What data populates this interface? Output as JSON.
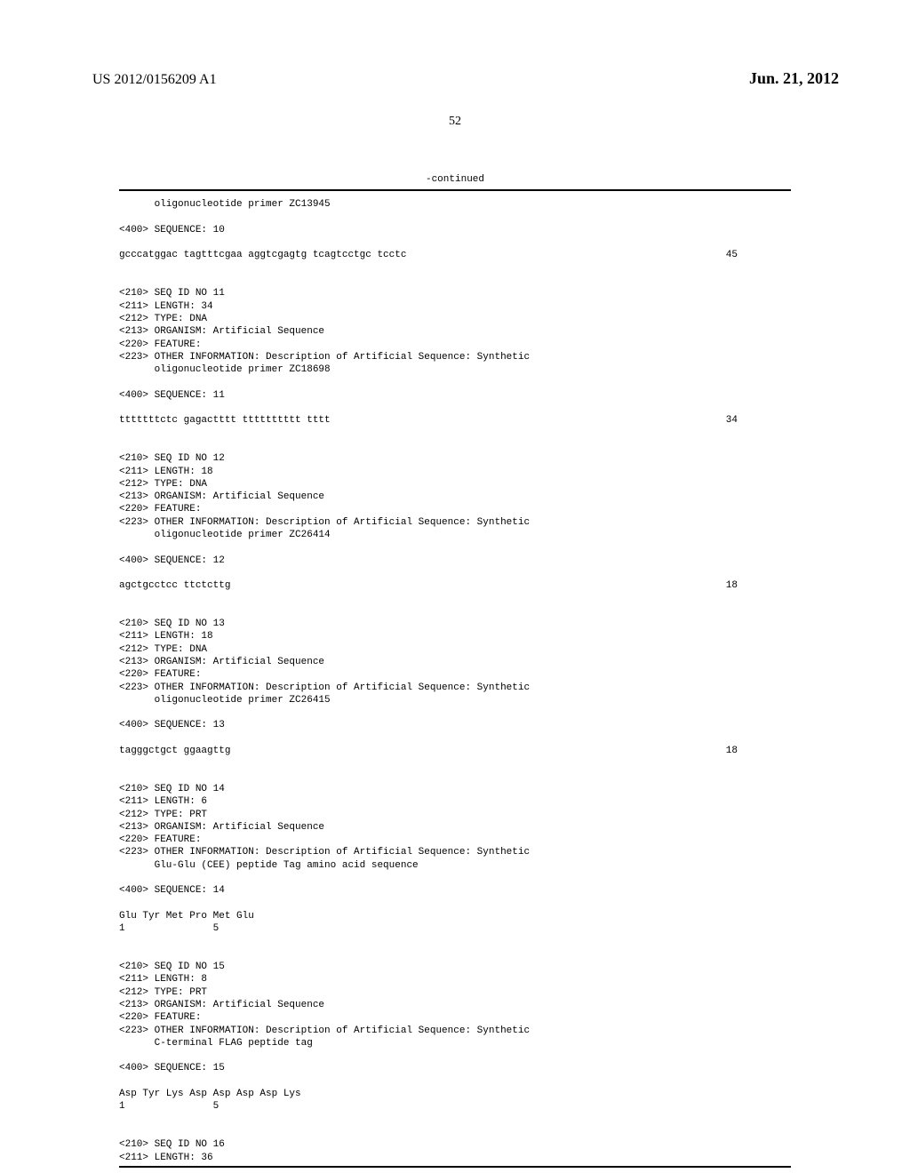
{
  "header": {
    "patent_number": "US 2012/0156209 A1",
    "date": "Jun. 21, 2012",
    "page_number": "52"
  },
  "continued_label": "-continued",
  "sequences": [
    {
      "desc_continuation": "      oligonucleotide primer ZC13945",
      "seq_label": "<400> SEQUENCE: 10",
      "seq_text": "gcccatggac tagtttcgaa aggtcgagtg tcagtcctgc tcctc",
      "seq_pos": "45"
    },
    {
      "header_lines": [
        "<210> SEQ ID NO 11",
        "<211> LENGTH: 34",
        "<212> TYPE: DNA",
        "<213> ORGANISM: Artificial Sequence",
        "<220> FEATURE:",
        "<223> OTHER INFORMATION: Description of Artificial Sequence: Synthetic",
        "      oligonucleotide primer ZC18698"
      ],
      "seq_label": "<400> SEQUENCE: 11",
      "seq_text": "tttttttctc gagactttt tttttttttt tttt",
      "seq_pos": "34"
    },
    {
      "header_lines": [
        "<210> SEQ ID NO 12",
        "<211> LENGTH: 18",
        "<212> TYPE: DNA",
        "<213> ORGANISM: Artificial Sequence",
        "<220> FEATURE:",
        "<223> OTHER INFORMATION: Description of Artificial Sequence: Synthetic",
        "      oligonucleotide primer ZC26414"
      ],
      "seq_label": "<400> SEQUENCE: 12",
      "seq_text": "agctgcctcc ttctcttg",
      "seq_pos": "18"
    },
    {
      "header_lines": [
        "<210> SEQ ID NO 13",
        "<211> LENGTH: 18",
        "<212> TYPE: DNA",
        "<213> ORGANISM: Artificial Sequence",
        "<220> FEATURE:",
        "<223> OTHER INFORMATION: Description of Artificial Sequence: Synthetic",
        "      oligonucleotide primer ZC26415"
      ],
      "seq_label": "<400> SEQUENCE: 13",
      "seq_text": "tagggctgct ggaagttg",
      "seq_pos": "18"
    },
    {
      "header_lines": [
        "<210> SEQ ID NO 14",
        "<211> LENGTH: 6",
        "<212> TYPE: PRT",
        "<213> ORGANISM: Artificial Sequence",
        "<220> FEATURE:",
        "<223> OTHER INFORMATION: Description of Artificial Sequence: Synthetic",
        "      Glu-Glu (CEE) peptide Tag amino acid sequence"
      ],
      "seq_label": "<400> SEQUENCE: 14",
      "seq_text": "Glu Tyr Met Pro Met Glu",
      "seq_positions": "1               5"
    },
    {
      "header_lines": [
        "<210> SEQ ID NO 15",
        "<211> LENGTH: 8",
        "<212> TYPE: PRT",
        "<213> ORGANISM: Artificial Sequence",
        "<220> FEATURE:",
        "<223> OTHER INFORMATION: Description of Artificial Sequence: Synthetic",
        "      C-terminal FLAG peptide tag"
      ],
      "seq_label": "<400> SEQUENCE: 15",
      "seq_text": "Asp Tyr Lys Asp Asp Asp Asp Lys",
      "seq_positions": "1               5"
    },
    {
      "header_lines": [
        "<210> SEQ ID NO 16",
        "<211> LENGTH: 36"
      ]
    }
  ]
}
